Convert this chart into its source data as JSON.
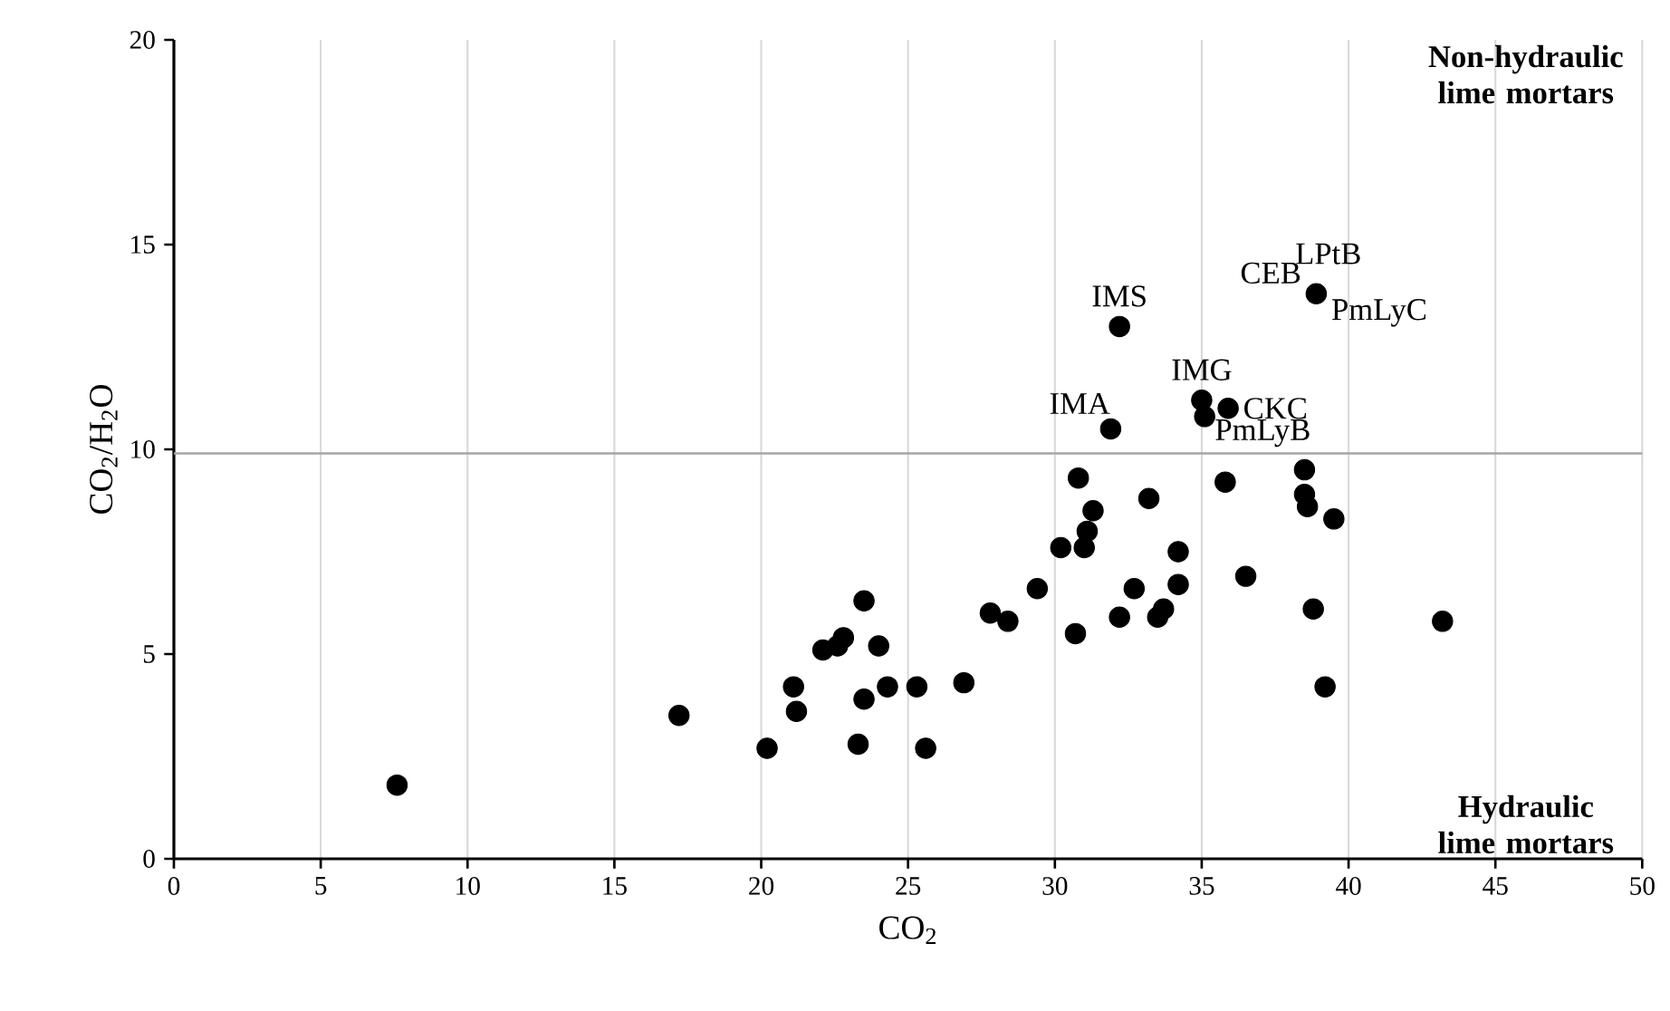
{
  "chart_data": {
    "type": "scatter",
    "xlabel": "CO$_{2}$",
    "ylabel": "CO$_{2}$/H$_{2}$O",
    "xlim": [
      0,
      50
    ],
    "xticks": [
      0,
      5,
      10,
      15,
      20,
      25,
      30,
      35,
      40,
      45,
      50
    ],
    "ylim": [
      0,
      20
    ],
    "yticks": [
      0,
      5,
      10,
      15,
      20
    ],
    "grid": "x",
    "marker": "circle",
    "series": [
      {
        "color": "#000000",
        "x": [
          7.6,
          17.2,
          20.2,
          21.1,
          21.2,
          22.1,
          22.6,
          22.8,
          23.3,
          23.5,
          23.5,
          24.0,
          24.3,
          25.3,
          25.6,
          26.9,
          27.8,
          28.4,
          29.4,
          30.2,
          30.7,
          30.8,
          31.0,
          31.1,
          31.3,
          31.9,
          32.2,
          32.2,
          32.7,
          33.2,
          33.5,
          33.7,
          34.2,
          34.2,
          35.0,
          35.1,
          35.9,
          35.8,
          36.5,
          38.5,
          38.5,
          38.6,
          38.8,
          38.9,
          39.2,
          39.5,
          43.2
        ],
        "values": [
          1.8,
          3.5,
          2.7,
          4.2,
          3.6,
          5.1,
          5.2,
          5.4,
          2.8,
          3.9,
          6.3,
          5.2,
          4.2,
          4.2,
          2.7,
          4.3,
          6.0,
          5.8,
          6.6,
          7.6,
          5.5,
          9.3,
          7.6,
          8.0,
          8.5,
          10.5,
          13.0,
          5.9,
          6.6,
          8.8,
          5.9,
          6.1,
          7.5,
          6.7,
          11.2,
          10.8,
          11.0,
          9.2,
          6.9,
          9.5,
          8.9,
          8.6,
          6.1,
          13.8,
          4.2,
          8.3,
          5.8
        ]
      }
    ],
    "ref_lines": [
      {
        "axis": "y",
        "value": 9.9,
        "color": "#a6a6a6"
      }
    ],
    "annotations": [
      "Non-hydraulic lime mortars",
      "Hydraulic lime mortars",
      {
        "text": "IMS",
        "x": 32.2,
        "y": 13.0
      },
      {
        "text": "IMA",
        "x": 31.9,
        "y": 10.5
      },
      {
        "text": "IMG",
        "x": 35.0,
        "y": 11.2
      },
      {
        "text": "CKC",
        "x": 35.9,
        "y": 11.0
      },
      {
        "text": "PmLyB",
        "x": 35.1,
        "y": 10.8
      },
      {
        "text": "CEB",
        "x": 38.9,
        "y": 13.8
      },
      {
        "text": "LPtB",
        "x": 38.9,
        "y": 13.8
      },
      {
        "text": "PmLyC",
        "x": 38.9,
        "y": 13.8
      }
    ]
  }
}
